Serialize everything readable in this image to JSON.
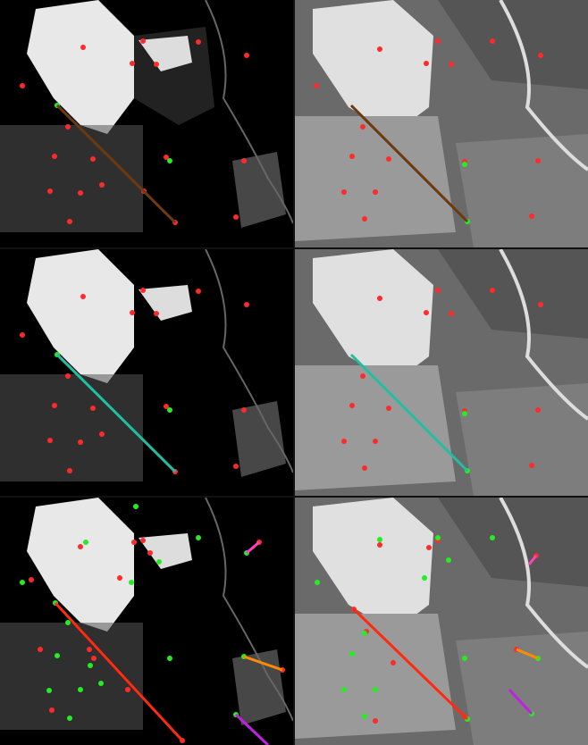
{
  "description_kind": "keypoint-matching visualization on satellite imagery",
  "rows": [
    {
      "row": 1,
      "match_line_color": "#6b3a10",
      "left_keypoints_color": "#ff2a2a",
      "right_keypoints_color": "#ff2a2a"
    },
    {
      "row": 2,
      "match_line_color": "#1fbfa0",
      "left_keypoints_color": "#ff2a2a",
      "right_keypoints_color": "#ff2a2a"
    },
    {
      "row": 3,
      "match_line_colors": [
        "#ff2a10",
        "#ff8c00",
        "#c020e0",
        "#ff40c0"
      ],
      "left_keypoints_color": "#ff2a2a",
      "right_keypoints_color": "#ff2a2a"
    }
  ],
  "colors": {
    "keypoint_red": "#ff2a2a",
    "keypoint_green": "#22ee22",
    "bg_dark": "#000000"
  }
}
